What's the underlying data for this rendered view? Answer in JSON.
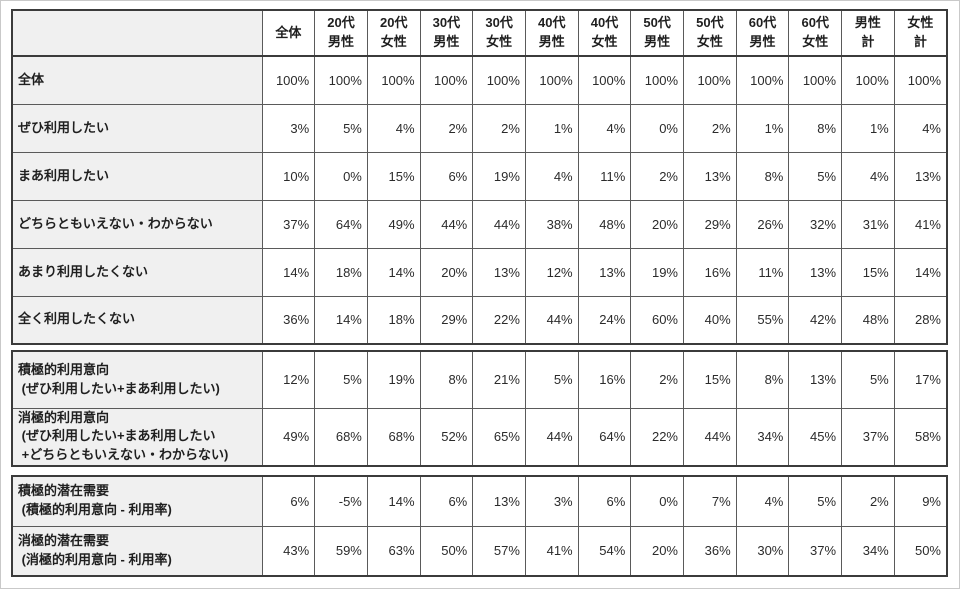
{
  "colors": {
    "frame_border": "#c9c9c9",
    "outer_border": "#3b3b3b",
    "grid_line": "#5a5a5a",
    "label_cell_bg": "#f0f0f0",
    "data_cell_bg": "#ffffff",
    "text": "#1f1f1f"
  },
  "table": {
    "corner_label": "",
    "columns": [
      {
        "lines": [
          "全体"
        ]
      },
      {
        "lines": [
          "20代",
          "男性"
        ]
      },
      {
        "lines": [
          "20代",
          "女性"
        ]
      },
      {
        "lines": [
          "30代",
          "男性"
        ]
      },
      {
        "lines": [
          "30代",
          "女性"
        ]
      },
      {
        "lines": [
          "40代",
          "男性"
        ]
      },
      {
        "lines": [
          "40代",
          "女性"
        ]
      },
      {
        "lines": [
          "50代",
          "男性"
        ]
      },
      {
        "lines": [
          "50代",
          "女性"
        ]
      },
      {
        "lines": [
          "60代",
          "男性"
        ]
      },
      {
        "lines": [
          "60代",
          "女性"
        ]
      },
      {
        "lines": [
          "男性",
          "計"
        ]
      },
      {
        "lines": [
          "女性",
          "計"
        ]
      }
    ],
    "sections": [
      {
        "name": "ratings",
        "rows": [
          {
            "label_lines": [
              "全体"
            ],
            "values": [
              "100%",
              "100%",
              "100%",
              "100%",
              "100%",
              "100%",
              "100%",
              "100%",
              "100%",
              "100%",
              "100%",
              "100%",
              "100%"
            ]
          },
          {
            "label_lines": [
              "ぜひ利用したい"
            ],
            "values": [
              "3%",
              "5%",
              "4%",
              "2%",
              "2%",
              "1%",
              "4%",
              "0%",
              "2%",
              "1%",
              "8%",
              "1%",
              "4%"
            ]
          },
          {
            "label_lines": [
              "まあ利用したい"
            ],
            "values": [
              "10%",
              "0%",
              "15%",
              "6%",
              "19%",
              "4%",
              "11%",
              "2%",
              "13%",
              "8%",
              "5%",
              "4%",
              "13%"
            ]
          },
          {
            "label_lines": [
              "どちらともいえない・わからない"
            ],
            "values": [
              "37%",
              "64%",
              "49%",
              "44%",
              "44%",
              "38%",
              "48%",
              "20%",
              "29%",
              "26%",
              "32%",
              "31%",
              "41%"
            ]
          },
          {
            "label_lines": [
              "あまり利用したくない"
            ],
            "values": [
              "14%",
              "18%",
              "14%",
              "20%",
              "13%",
              "12%",
              "13%",
              "19%",
              "16%",
              "11%",
              "13%",
              "15%",
              "14%"
            ]
          },
          {
            "label_lines": [
              "全く利用したくない"
            ],
            "values": [
              "36%",
              "14%",
              "18%",
              "29%",
              "22%",
              "44%",
              "24%",
              "60%",
              "40%",
              "55%",
              "42%",
              "48%",
              "28%"
            ]
          }
        ]
      },
      {
        "name": "aggregated-intention",
        "rows": [
          {
            "label_lines": [
              "積極的利用意向",
              " (ぜひ利用したい+まあ利用したい)"
            ],
            "values": [
              "12%",
              "5%",
              "19%",
              "8%",
              "21%",
              "5%",
              "16%",
              "2%",
              "15%",
              "8%",
              "13%",
              "5%",
              "17%"
            ]
          },
          {
            "label_lines": [
              "消極的利用意向",
              " (ぜひ利用したい+まあ利用したい",
              " +どちらともいえない・わからない)"
            ],
            "values": [
              "49%",
              "68%",
              "68%",
              "52%",
              "65%",
              "44%",
              "64%",
              "22%",
              "44%",
              "34%",
              "45%",
              "37%",
              "58%"
            ]
          }
        ]
      },
      {
        "name": "latent-demand",
        "rows": [
          {
            "label_lines": [
              "積極的潜在需要",
              " (積極的利用意向 - 利用率)"
            ],
            "values": [
              "6%",
              "-5%",
              "14%",
              "6%",
              "13%",
              "3%",
              "6%",
              "0%",
              "7%",
              "4%",
              "5%",
              "2%",
              "9%"
            ]
          },
          {
            "label_lines": [
              "消極的潜在需要",
              " (消極的利用意向 - 利用率)"
            ],
            "values": [
              "43%",
              "59%",
              "63%",
              "50%",
              "57%",
              "41%",
              "54%",
              "20%",
              "36%",
              "30%",
              "37%",
              "34%",
              "50%"
            ]
          }
        ]
      }
    ]
  }
}
